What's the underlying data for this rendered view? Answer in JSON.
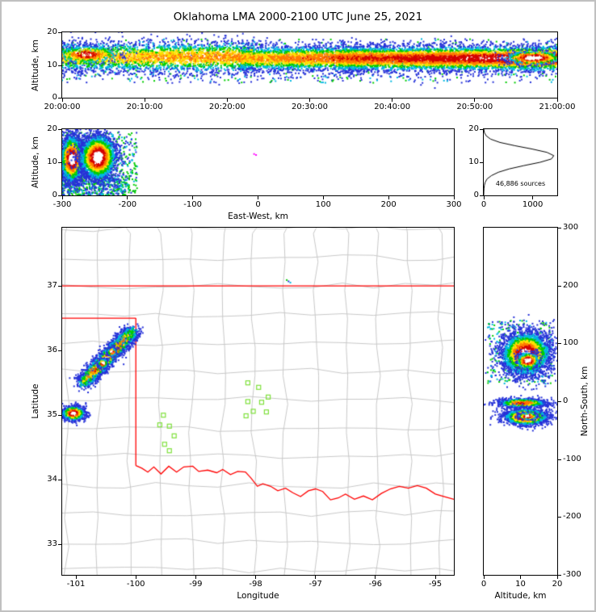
{
  "title": "Oklahoma LMA 2000-2100 UTC June 25, 2021",
  "colors": {
    "density_scale": [
      "#2632d8",
      "#00b8e0",
      "#00cc00",
      "#ffe100",
      "#ff7a00",
      "#d40000",
      "#ffffff"
    ],
    "state_border": "#ff0000",
    "county": "#c8c8c8",
    "stations": "#7fe03c",
    "histogram": "#000000",
    "magenta_point": "#ff00ff"
  },
  "chart_data": [
    {
      "id": "time",
      "type": "scatter-density",
      "xlabel": "",
      "ylabel": "Altitude, km",
      "xlim": [
        0,
        3600
      ],
      "ylim": [
        0,
        20
      ],
      "xticks": [
        {
          "v": 0,
          "l": "20:00:00"
        },
        {
          "v": 600,
          "l": "20:10:00"
        },
        {
          "v": 1200,
          "l": "20:20:00"
        },
        {
          "v": 1800,
          "l": "20:30:00"
        },
        {
          "v": 2400,
          "l": "20:40:00"
        },
        {
          "v": 3000,
          "l": "20:50:00"
        },
        {
          "v": 3600,
          "l": "21:00:00"
        }
      ],
      "yticks": [
        {
          "v": 0,
          "l": "0"
        },
        {
          "v": 10,
          "l": "10"
        },
        {
          "v": 20,
          "l": "20"
        }
      ],
      "clusters": [
        {
          "kind": "scatter",
          "seed": 21,
          "n": 850,
          "x0": 0,
          "x1": 3600,
          "y0": 4.5,
          "y1": 18,
          "colors": [
            "#2632d8",
            "#2632d8",
            "#00b8e0",
            "#00cc00"
          ]
        },
        {
          "kind": "band",
          "seed": 22,
          "n": 3000,
          "x0": 0,
          "x1": 1400,
          "cy": 12.4,
          "sy": 2.5,
          "g0": 0.58,
          "g1": 0.72,
          "noise": 0.18
        },
        {
          "kind": "band",
          "seed": 23,
          "n": 2400,
          "x0": 1300,
          "x1": 2200,
          "cy": 12.0,
          "sy": 2.0,
          "g0": 0.66,
          "g1": 0.82,
          "noise": 0.16
        },
        {
          "kind": "band",
          "seed": 24,
          "n": 5600,
          "x0": 2000,
          "x1": 3600,
          "cy": 12.0,
          "sy": 2.0,
          "g0": 0.8,
          "g1": 1.0,
          "noise": 0.14
        },
        {
          "kind": "gauss",
          "seed": 25,
          "n": 600,
          "cx": 3430,
          "cy": 12.2,
          "sx": 110,
          "sy": 1.1,
          "gain": 1.14
        },
        {
          "kind": "gauss",
          "seed": 26,
          "n": 350,
          "cx": 180,
          "cy": 13.2,
          "sx": 120,
          "sy": 1.4,
          "gain": 1.0
        }
      ]
    },
    {
      "id": "ew",
      "type": "scatter-density",
      "xlabel": "East-West, km",
      "ylabel": "Altitude, km",
      "xlim": [
        -300,
        300
      ],
      "ylim": [
        0,
        20
      ],
      "xticks": [
        {
          "v": -300,
          "l": "-300"
        },
        {
          "v": -200,
          "l": "-200"
        },
        {
          "v": -100,
          "l": "-100"
        },
        {
          "v": 0,
          "l": "0"
        },
        {
          "v": 100,
          "l": "100"
        },
        {
          "v": 200,
          "l": "200"
        },
        {
          "v": 300,
          "l": "300"
        }
      ],
      "yticks": [
        {
          "v": 0,
          "l": "0"
        },
        {
          "v": 10,
          "l": "10"
        },
        {
          "v": 20,
          "l": "20"
        }
      ],
      "clusters": [
        {
          "kind": "scatter",
          "seed": 31,
          "n": 600,
          "x0": -300,
          "x1": -185,
          "y0": 0,
          "y1": 19,
          "colors": [
            "#2632d8",
            "#00b8e0",
            "#00cc00",
            "#00cc00"
          ]
        },
        {
          "kind": "scatter",
          "seed": 34,
          "n": 420,
          "x0": -300,
          "x1": -200,
          "y0": 0,
          "y1": 6,
          "colors": [
            "#00cc00",
            "#00b8e0",
            "#2632d8"
          ]
        },
        {
          "kind": "gauss",
          "seed": 32,
          "n": 2400,
          "cx": -285,
          "cy": 11.0,
          "sx": 9,
          "sy": 3.6,
          "gain": 1.1
        },
        {
          "kind": "gauss",
          "seed": 33,
          "n": 2900,
          "cx": -245,
          "cy": 11.5,
          "sx": 14,
          "sy": 3.4,
          "gain": 1.12
        },
        {
          "kind": "dots",
          "points": [
            {
              "x": -6,
              "y": 12.5,
              "c": "#ff00ff"
            },
            {
              "x": -3,
              "y": 12.2,
              "c": "#ff00ff"
            }
          ]
        }
      ]
    },
    {
      "id": "hist",
      "type": "line",
      "xlabel": "",
      "ylabel": "",
      "xlim": [
        0,
        1500
      ],
      "ylim": [
        0,
        20
      ],
      "xticks": [
        {
          "v": 0,
          "l": "0"
        },
        {
          "v": 1000,
          "l": "1000"
        }
      ],
      "yticks": [
        {
          "v": 0,
          "l": "0"
        },
        {
          "v": 10,
          "l": "10"
        },
        {
          "v": 20,
          "l": "20"
        }
      ],
      "annotation": "46,886 sources",
      "profile": [
        [
          0,
          0
        ],
        [
          1,
          2
        ],
        [
          2,
          5
        ],
        [
          3,
          12
        ],
        [
          4,
          30
        ],
        [
          5,
          70
        ],
        [
          6,
          160
        ],
        [
          7,
          300
        ],
        [
          8,
          520
        ],
        [
          9,
          820
        ],
        [
          10,
          1150
        ],
        [
          11,
          1380
        ],
        [
          12,
          1430
        ],
        [
          13,
          1290
        ],
        [
          14,
          990
        ],
        [
          15,
          640
        ],
        [
          16,
          330
        ],
        [
          17,
          140
        ],
        [
          18,
          50
        ],
        [
          19,
          12
        ],
        [
          20,
          2
        ]
      ]
    },
    {
      "id": "map",
      "type": "map-density",
      "xlabel": "Longitude",
      "ylabel": "Latitude",
      "xlim": [
        -101.23,
        -94.69
      ],
      "ylim": [
        32.53,
        37.9
      ],
      "xticks": [
        {
          "v": -101,
          "l": "-101"
        },
        {
          "v": -100,
          "l": "-100"
        },
        {
          "v": -99,
          "l": "-99"
        },
        {
          "v": -98,
          "l": "-98"
        },
        {
          "v": -97,
          "l": "-97"
        },
        {
          "v": -96,
          "l": "-96"
        },
        {
          "v": -95,
          "l": "-95"
        }
      ],
      "yticks": [
        {
          "v": 33,
          "l": "33"
        },
        {
          "v": 34,
          "l": "34"
        },
        {
          "v": 35,
          "l": "35"
        },
        {
          "v": 36,
          "l": "36"
        },
        {
          "v": 37,
          "l": "37"
        }
      ],
      "grid": {
        "lon0": -101.15,
        "lat0": 32.6,
        "dlon": 0.52,
        "dlat": 0.44,
        "jit": 0.1
      },
      "state_border": [
        [
          [
            -101.23,
            37.0
          ],
          [
            -94.69,
            37.0
          ]
        ],
        [
          [
            -101.23,
            36.5
          ],
          [
            -100.0,
            36.5
          ]
        ],
        [
          [
            -100.0,
            36.5
          ],
          [
            -100.0,
            34.22
          ]
        ]
      ],
      "red_river": [
        [
          -100.0,
          34.22
        ],
        [
          -99.9,
          34.18
        ],
        [
          -99.8,
          34.12
        ],
        [
          -99.7,
          34.2
        ],
        [
          -99.58,
          34.09
        ],
        [
          -99.45,
          34.21
        ],
        [
          -99.32,
          34.12
        ],
        [
          -99.2,
          34.2
        ],
        [
          -99.05,
          34.21
        ],
        [
          -98.95,
          34.13
        ],
        [
          -98.8,
          34.15
        ],
        [
          -98.65,
          34.11
        ],
        [
          -98.55,
          34.16
        ],
        [
          -98.42,
          34.08
        ],
        [
          -98.3,
          34.13
        ],
        [
          -98.17,
          34.12
        ],
        [
          -98.08,
          34.03
        ],
        [
          -97.97,
          33.9
        ],
        [
          -97.88,
          33.94
        ],
        [
          -97.75,
          33.9
        ],
        [
          -97.63,
          33.83
        ],
        [
          -97.5,
          33.87
        ],
        [
          -97.38,
          33.8
        ],
        [
          -97.25,
          33.74
        ],
        [
          -97.12,
          33.83
        ],
        [
          -97.0,
          33.86
        ],
        [
          -96.88,
          33.82
        ],
        [
          -96.75,
          33.69
        ],
        [
          -96.62,
          33.72
        ],
        [
          -96.5,
          33.78
        ],
        [
          -96.35,
          33.7
        ],
        [
          -96.2,
          33.75
        ],
        [
          -96.05,
          33.69
        ],
        [
          -95.9,
          33.79
        ],
        [
          -95.75,
          33.86
        ],
        [
          -95.6,
          33.9
        ],
        [
          -95.45,
          33.87
        ],
        [
          -95.3,
          33.91
        ],
        [
          -95.15,
          33.87
        ],
        [
          -95.0,
          33.78
        ],
        [
          -94.85,
          33.74
        ],
        [
          -94.69,
          33.7
        ]
      ],
      "stations": [
        [
          -98.13,
          35.5
        ],
        [
          -97.95,
          35.43
        ],
        [
          -97.79,
          35.28
        ],
        [
          -97.9,
          35.2
        ],
        [
          -98.13,
          35.21
        ],
        [
          -98.04,
          35.06
        ],
        [
          -97.82,
          35.05
        ],
        [
          -98.16,
          34.99
        ],
        [
          -99.54,
          35.0
        ],
        [
          -99.6,
          34.85
        ],
        [
          -99.44,
          34.83
        ],
        [
          -99.36,
          34.68
        ],
        [
          -99.52,
          34.55
        ],
        [
          -99.44,
          34.45
        ]
      ],
      "clusters": [
        {
          "kind": "streak",
          "seed": 41,
          "n": 2800,
          "x0": -100.88,
          "y0": 35.5,
          "x1": -100.05,
          "y1": 36.3,
          "sx": 0.075,
          "sy": 0.06,
          "g0": 0.5,
          "g1": 1.0
        },
        {
          "kind": "gauss",
          "seed": 42,
          "n": 350,
          "cx": -100.55,
          "cy": 35.8,
          "sx": 0.04,
          "sy": 0.035,
          "gain": 1.15
        },
        {
          "kind": "gauss",
          "seed": 43,
          "n": 300,
          "cx": -100.4,
          "cy": 35.98,
          "sx": 0.035,
          "sy": 0.03,
          "gain": 1.15
        },
        {
          "kind": "gauss",
          "seed": 44,
          "n": 1000,
          "cx": -101.04,
          "cy": 35.03,
          "sx": 0.095,
          "sy": 0.055,
          "gain": 1.12
        },
        {
          "kind": "dots",
          "points": [
            {
              "x": -97.45,
              "y": 37.07,
              "c": "#2632d8"
            },
            {
              "x": -97.42,
              "y": 37.05,
              "c": "#00b8e0"
            },
            {
              "x": -97.48,
              "y": 37.09,
              "c": "#00cc00"
            }
          ]
        }
      ]
    },
    {
      "id": "ns",
      "type": "scatter-density",
      "xlabel": "Altitude, km",
      "ylabel": "North-South, km",
      "xlim": [
        0,
        20
      ],
      "ylim": [
        -300,
        300
      ],
      "xticks": [
        {
          "v": 0,
          "l": "0"
        },
        {
          "v": 10,
          "l": "10"
        },
        {
          "v": 20,
          "l": "20"
        }
      ],
      "yticks": [
        {
          "v": 300,
          "l": "300"
        },
        {
          "v": 200,
          "l": "200"
        },
        {
          "v": 100,
          "l": "100"
        },
        {
          "v": 0,
          "l": "0"
        },
        {
          "v": -100,
          "l": "-100"
        },
        {
          "v": -200,
          "l": "-200"
        },
        {
          "v": -300,
          "l": "-300"
        }
      ],
      "clusters": [
        {
          "kind": "scatter",
          "seed": 51,
          "n": 350,
          "x0": 1,
          "x1": 19,
          "y0": 30,
          "y1": 140,
          "colors": [
            "#2632d8",
            "#00b8e0",
            "#00cc00"
          ]
        },
        {
          "kind": "gauss",
          "seed": 52,
          "n": 3200,
          "cx": 11.5,
          "cy": 82,
          "sx": 3.4,
          "sy": 19,
          "gain": 1.05
        },
        {
          "kind": "gauss",
          "seed": 53,
          "n": 500,
          "cx": 12.0,
          "cy": 70,
          "sx": 1.6,
          "sy": 7,
          "gain": 1.15
        },
        {
          "kind": "gauss",
          "seed": 54,
          "n": 900,
          "cx": 10.5,
          "cy": -3,
          "sx": 3.6,
          "sy": 4,
          "gain": 0.85
        },
        {
          "kind": "gauss",
          "seed": 55,
          "n": 1800,
          "cx": 11.5,
          "cy": -27,
          "sx": 3.0,
          "sy": 7,
          "gain": 1.1
        },
        {
          "kind": "gauss",
          "seed": 56,
          "n": 250,
          "cx": 12.0,
          "cy": -26,
          "sx": 1.3,
          "sy": 3,
          "gain": 1.16
        }
      ]
    }
  ]
}
